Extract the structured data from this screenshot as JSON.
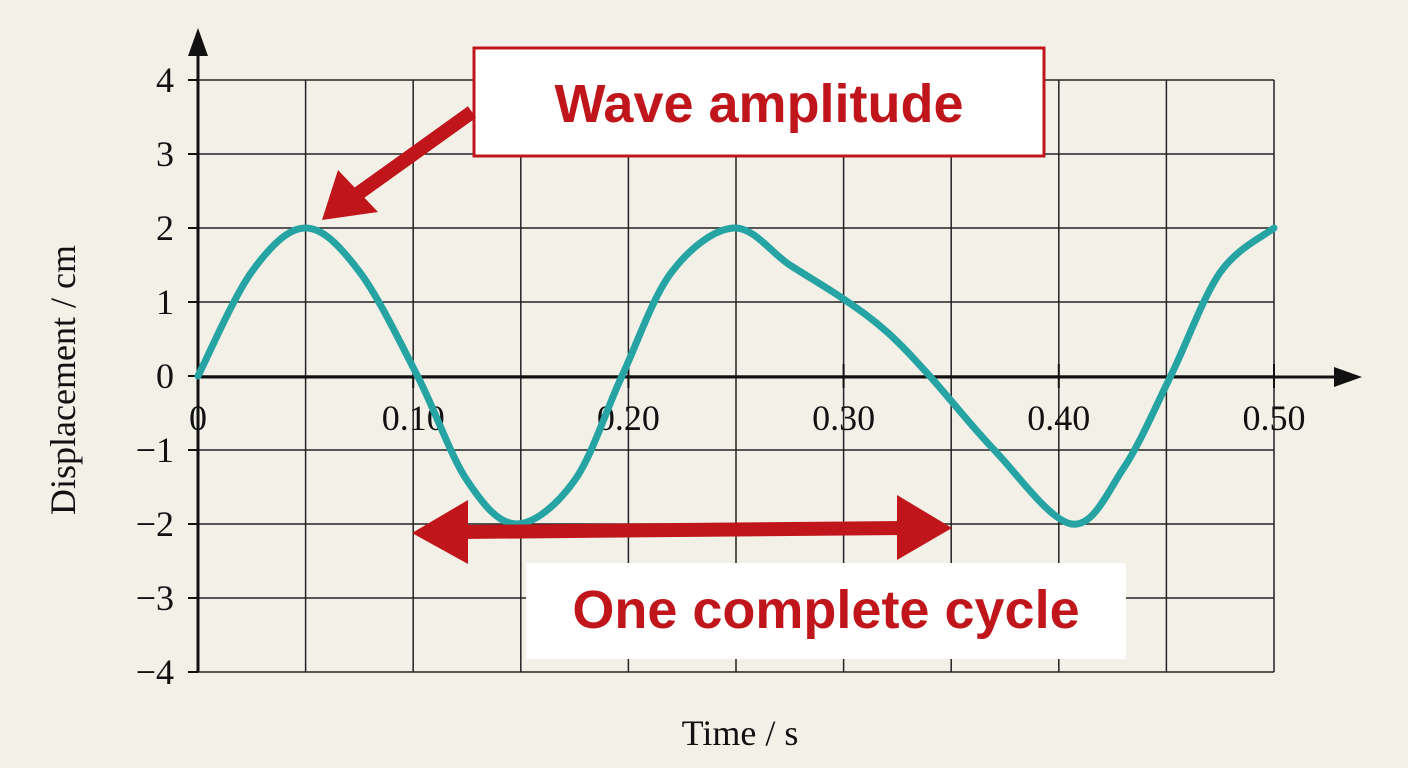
{
  "chart_data": {
    "type": "line",
    "x_label": "Time / s",
    "y_label": "Displacement / cm",
    "x": [
      0,
      0.025,
      0.05,
      0.075,
      0.102,
      0.125,
      0.148,
      0.175,
      0.197,
      0.22,
      0.249,
      0.275,
      0.3,
      0.32,
      0.34,
      0.37,
      0.406,
      0.43,
      0.452,
      0.475,
      0.5
    ],
    "series": [
      {
        "name": "Displacement",
        "color": "#26a3a3",
        "values": [
          0,
          1.41,
          2,
          1.41,
          0,
          -1.41,
          -2,
          -1.41,
          0,
          1.4,
          2,
          1.5,
          1.04,
          0.6,
          0,
          -1.0,
          -2,
          -1.25,
          0,
          1.4,
          2
        ]
      }
    ],
    "xlim": [
      0,
      0.5
    ],
    "ylim": [
      -4,
      4
    ],
    "xticks": [
      0,
      {
        "value": 0.1,
        "label": "0.10"
      },
      {
        "value": 0.2,
        "label": "0.20"
      },
      {
        "value": 0.3,
        "label": "0.30"
      },
      {
        "value": 0.4,
        "label": "0.40"
      },
      {
        "value": 0.5,
        "label": "0.50"
      }
    ],
    "xgrid": [
      0.05,
      0.1,
      0.15,
      0.2,
      0.25,
      0.3,
      0.35,
      0.4,
      0.45,
      0.5
    ],
    "yticks": [
      {
        "value": -4,
        "label": "−4"
      },
      {
        "value": -3,
        "label": "−3"
      },
      {
        "value": -2,
        "label": "−2"
      },
      {
        "value": -1,
        "label": "−1"
      },
      0,
      1,
      2,
      3,
      4
    ],
    "grid": true,
    "annotations": [
      "Wave amplitude",
      "One complete cycle"
    ]
  }
}
